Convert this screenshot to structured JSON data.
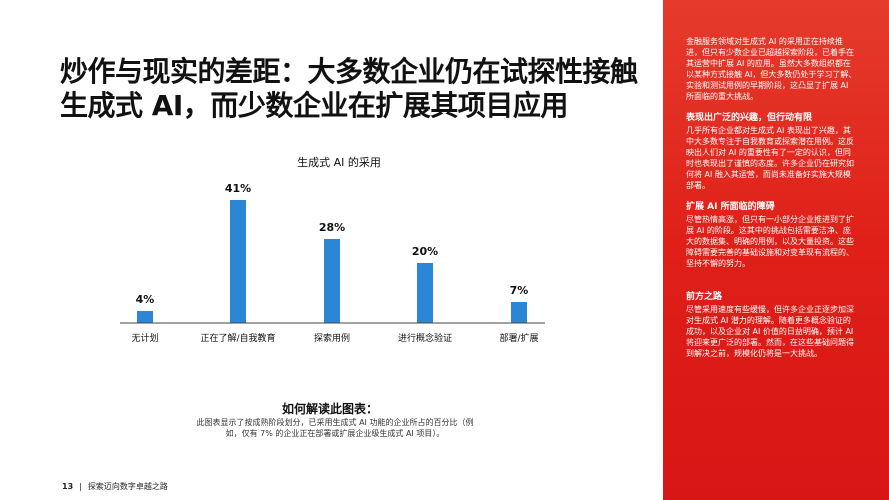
{
  "title": "炒作与现实的差距：大多数企业仍在试探性接触生成式 AI，而少数企业在扩展其项目应用",
  "chart_data": {
    "type": "bar",
    "title": "生成式 AI 的采用",
    "categories": [
      "无计划",
      "正在了解/自我教育",
      "探索用例",
      "进行概念验证",
      "部署/扩展"
    ],
    "values": [
      4,
      41,
      28,
      20,
      7
    ],
    "value_labels": [
      "4%",
      "41%",
      "28%",
      "20%",
      "7%"
    ],
    "unit": "%",
    "ylim": [
      0,
      45
    ],
    "bar_color": "#2b86d6",
    "grid": false,
    "legend": "none"
  },
  "interpretation": {
    "title": "如何解读此图表：",
    "body": "此图表显示了按成熟阶段划分，已采用生成式 AI 功能的企业所占的百分比（例如，仅有 7% 的企业正在部署或扩展企业级生成式 AI 项目）。"
  },
  "footer": {
    "page": "13",
    "separator": "|",
    "text": "探索迈向数字卓越之路"
  },
  "sidebar": {
    "intro": "金融服务领域对生成式 AI 的采用正在持续推进，但只有少数企业已超越探索阶段，已着手在其运营中扩展 AI 的应用。虽然大多数组织都在以某种方式接触 AI，但大多数仍处于学习了解、实验和测试用例的早期阶段，这凸显了扩展 AI 所面临的重大挑战。",
    "sections": [
      {
        "heading": "表现出广泛的兴趣，但行动有限",
        "text": "几乎所有企业都对生成式 AI 表现出了兴趣，其中大多数专注于自我教育或探索潜在用例。这反映出人们对 AI 的重要性有了一定的认识，但同时也表现出了谨慎的态度。许多企业仍在研究如何将 AI 融入其运营，而尚未准备好实施大规模部署。"
      },
      {
        "heading": "扩展 AI 所面临的障碍",
        "text": "尽管热情高涨，但只有一小部分企业推进到了扩展 AI 的阶段。这其中的挑战包括需要洁净、庞大的数据集、明确的用例，以及大量投资。这些障碍需要完善的基础设施和对变革现有流程的、坚持不懈的努力。"
      },
      {
        "heading": "前方之路",
        "text": "尽管采用速度有些缓慢，但许多企业正逐步加深对生成式 AI 潜力的理解。随着更多概念验证的成功，以及企业对 AI 价值的日益明确，预计 AI 将迎来更广泛的部署。然而，在这些基础问题得到解决之前，规模化仍将是一大挑战。"
      }
    ]
  }
}
